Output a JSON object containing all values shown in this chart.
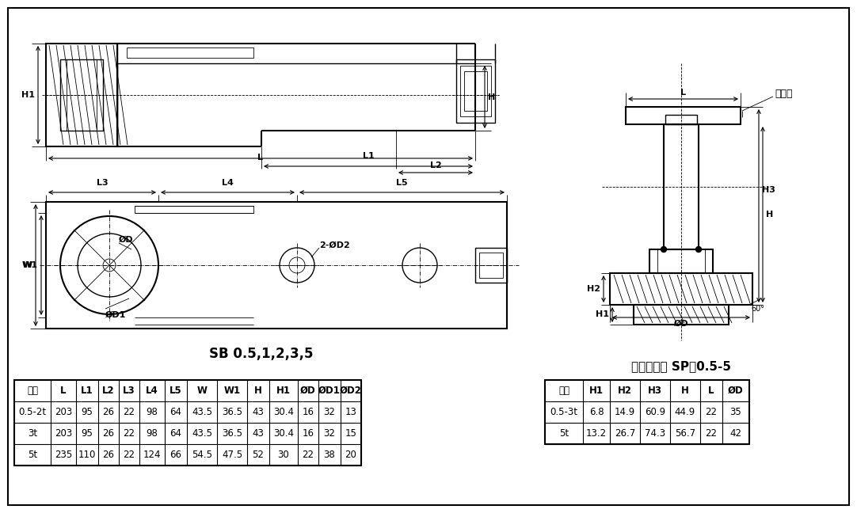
{
  "bg_color": "#ffffff",
  "line_color": "#000000",
  "label1": "SB 0.5,1,2,3,5",
  "label2": "连接件组件 SP－0.5-5",
  "sensor_label": "传感器",
  "table1_headers": [
    "容量",
    "L",
    "L1",
    "L2",
    "L3",
    "L4",
    "L5",
    "W",
    "W1",
    "H",
    "H1",
    "ØD",
    "ØD1",
    "ØD2"
  ],
  "table1_rows": [
    [
      "0.5-2t",
      "203",
      "95",
      "26",
      "22",
      "98",
      "64",
      "43.5",
      "36.5",
      "43",
      "30.4",
      "16",
      "32",
      "13"
    ],
    [
      "3t",
      "203",
      "95",
      "26",
      "22",
      "98",
      "64",
      "43.5",
      "36.5",
      "43",
      "30.4",
      "16",
      "32",
      "15"
    ],
    [
      "5t",
      "235",
      "110",
      "26",
      "22",
      "124",
      "66",
      "54.5",
      "47.5",
      "52",
      "30",
      "22",
      "38",
      "20"
    ]
  ],
  "table2_headers": [
    "容量",
    "H1",
    "H2",
    "H3",
    "H",
    "L",
    "ØD"
  ],
  "table2_rows": [
    [
      "0.5-3t",
      "6.8",
      "14.9",
      "60.9",
      "44.9",
      "22",
      "35"
    ],
    [
      "5t",
      "13.2",
      "26.7",
      "74.3",
      "56.7",
      "22",
      "42"
    ]
  ]
}
